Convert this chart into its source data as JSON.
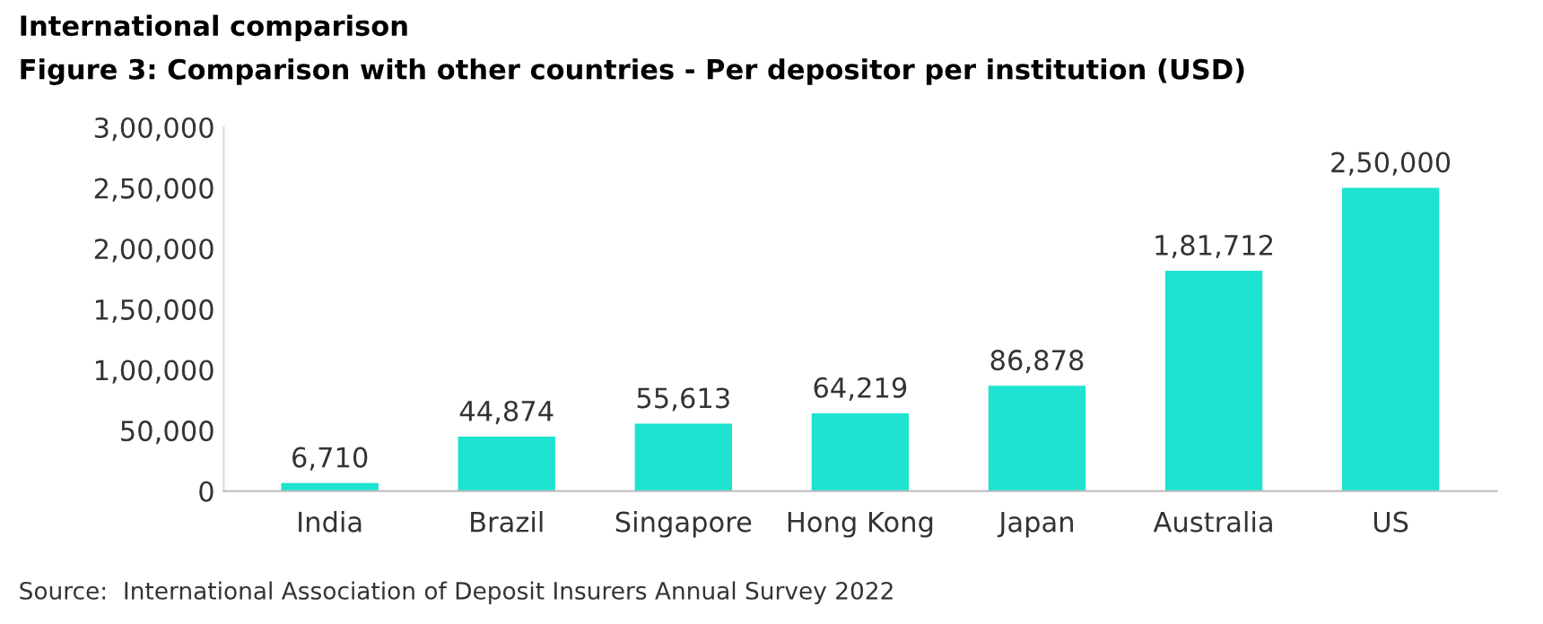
{
  "chart_data": {
    "type": "bar",
    "title": "International comparison",
    "subtitle": "Figure 3: Comparison with other countries - Per depositor per institution (USD)",
    "categories": [
      "India",
      "Brazil",
      "Singapore",
      "Hong Kong",
      "Japan",
      "Australia",
      "US"
    ],
    "values": [
      6710,
      44874,
      55613,
      64219,
      86878,
      181712,
      250000
    ],
    "value_labels": [
      "6,710",
      "44,874",
      "55,613",
      "64,219",
      "86,878",
      "1,81,712",
      "2,50,000"
    ],
    "color": "#1de3d0",
    "ylim": [
      0,
      300000
    ],
    "yticks": [
      {
        "value": 0,
        "label": "0"
      },
      {
        "value": 50000,
        "label": "50,000"
      },
      {
        "value": 100000,
        "label": "1,00,000"
      },
      {
        "value": 150000,
        "label": "1,50,000"
      },
      {
        "value": 200000,
        "label": "2,00,000"
      },
      {
        "value": 250000,
        "label": "2,50,000"
      },
      {
        "value": 300000,
        "label": "3,00,000"
      }
    ],
    "grid": false,
    "annotations": [
      "Source:  International Association of Deposit Insurers Annual Survey 2022"
    ]
  }
}
